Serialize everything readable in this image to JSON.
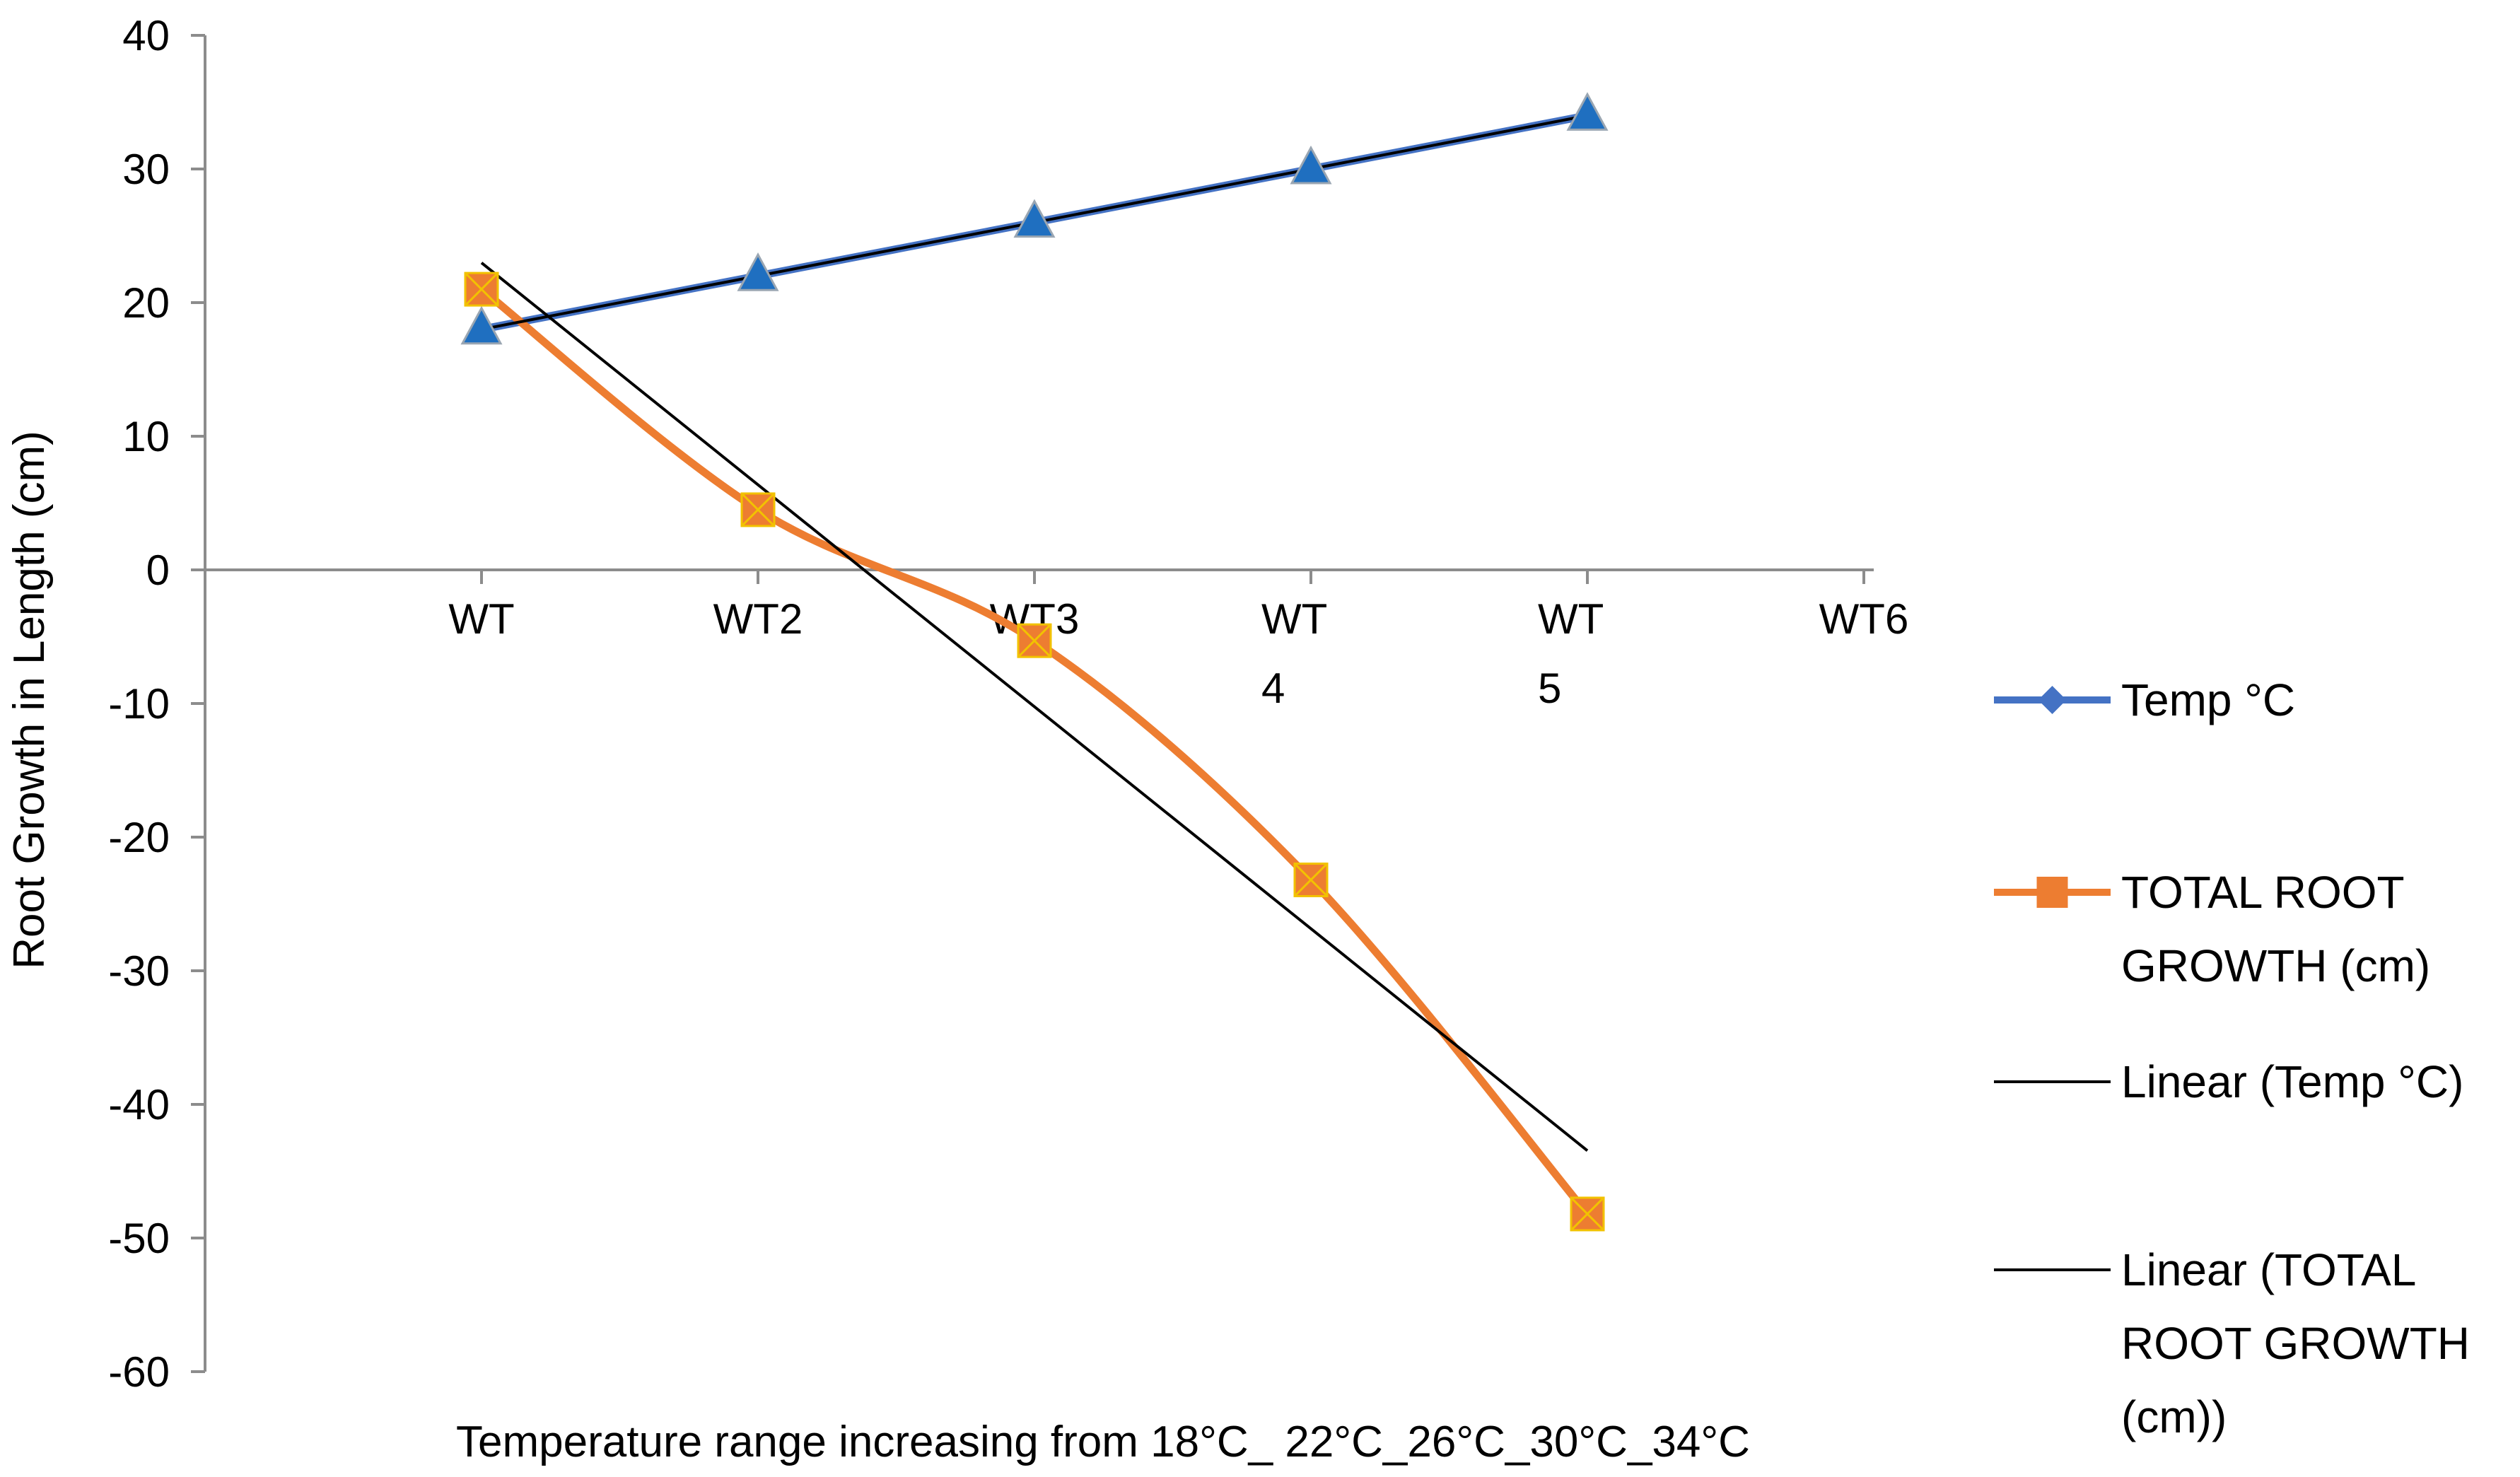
{
  "chart_data": {
    "type": "line",
    "title": "",
    "xlabel": "Temperature range increasing from 18°C_ 22°C_26°C_30°C_34°C",
    "ylabel": "Root Growth in Length (cm)",
    "ylim": [
      -60,
      40
    ],
    "yticks": [
      40,
      30,
      20,
      10,
      0,
      -10,
      -20,
      -30,
      -40,
      -50,
      -60
    ],
    "yticks_text": [
      "40",
      "30",
      "20",
      "10",
      "0",
      "-10",
      "-20",
      "-30",
      "-40",
      "-50",
      "-60"
    ],
    "category_labels": [
      [
        "WT"
      ],
      [
        "WT2"
      ],
      [
        "WT3"
      ],
      [
        "WT",
        "4"
      ],
      [
        "WT",
        "5"
      ],
      [
        "WT6"
      ]
    ],
    "series": [
      {
        "name": "Temp °C",
        "values": [
          18,
          22,
          26,
          30,
          34
        ],
        "color": "#4472C4",
        "marker": "triangle",
        "marker_color": "#1F6FC0"
      },
      {
        "name": "TOTAL ROOT GROWTH (cm)",
        "values": [
          21,
          4.5,
          -5.3,
          -23.2,
          -48.2
        ],
        "color": "#ED7D31",
        "marker": "square",
        "smooth": true
      }
    ],
    "trendlines": [
      {
        "name": "Linear (Temp °C)",
        "of": "Temp °C",
        "color": "#000000"
      },
      {
        "name": "Linear (TOTAL ROOT GROWTH (cm))",
        "of": "TOTAL ROOT GROWTH (cm)",
        "color": "#000000"
      }
    ],
    "legend_position": "right",
    "legend": [
      {
        "lines": [
          "Temp °C"
        ],
        "type": "line-marker",
        "color": "#4472C4",
        "marker": "diamond"
      },
      {
        "lines": [
          "TOTAL ROOT",
          "GROWTH (cm)"
        ],
        "type": "line-marker",
        "color": "#ED7D31",
        "marker": "square"
      },
      {
        "lines": [
          "Linear (Temp °C)"
        ],
        "type": "line",
        "color": "#000000"
      },
      {
        "lines": [
          "Linear (TOTAL",
          "ROOT GROWTH",
          "(cm))"
        ],
        "type": "line",
        "color": "#000000"
      }
    ]
  }
}
